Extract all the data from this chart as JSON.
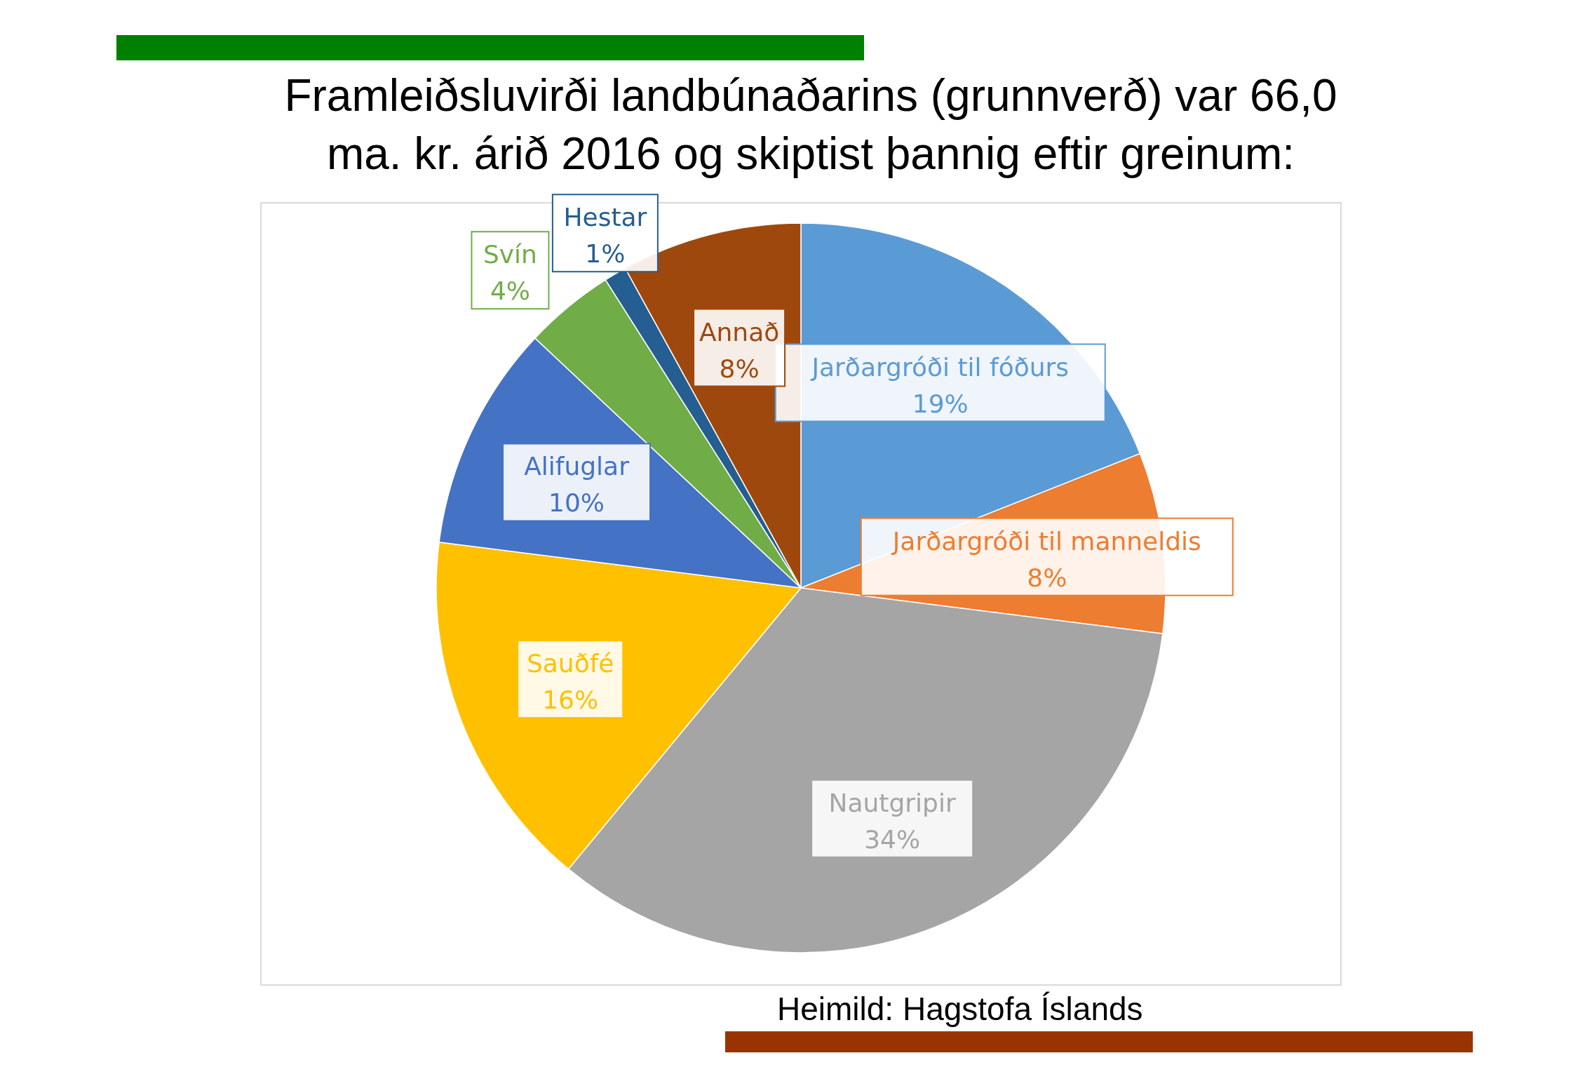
{
  "chart_data": {
    "type": "pie",
    "title": "Framleiðsluvirði landbúnaðarins (grunnverð) var 66,0 ma. kr. árið 2016 og skiptist þannig eftir greinum:",
    "categories": [
      "Jarðargróði til fóðurs",
      "Jarðargróði til manneldis",
      "Nautgripir",
      "Sauðfé",
      "Alifuglar",
      "Svín",
      "Hestar",
      "Annað"
    ],
    "values": [
      19,
      8,
      34,
      16,
      10,
      4,
      1,
      8
    ],
    "value_labels": [
      "19%",
      "8%",
      "34%",
      "16%",
      "10%",
      "4%",
      "1%",
      "8%"
    ],
    "colors": [
      "#5b9bd5",
      "#ed7d31",
      "#a5a5a5",
      "#ffc000",
      "#4472c4",
      "#70ad47",
      "#255e91",
      "#9e480e"
    ],
    "annotations": [
      "Heimild: Hagstofa Íslands"
    ]
  }
}
